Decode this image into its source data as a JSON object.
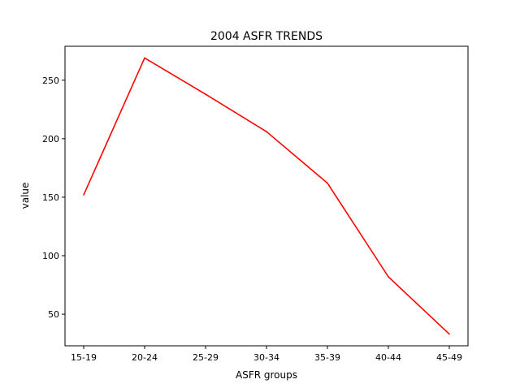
{
  "chart_data": {
    "type": "line",
    "title": "2004 ASFR TRENDS",
    "xlabel": "ASFR groups",
    "ylabel": "value",
    "categories": [
      "15-19",
      "20-24",
      "25-29",
      "30-34",
      "35-39",
      "40-44",
      "45-49"
    ],
    "series": [
      {
        "values": [
          152,
          269,
          238,
          206,
          162,
          82,
          33
        ]
      }
    ],
    "ylim": [
      23,
      279
    ],
    "yticks": [
      50,
      100,
      150,
      200,
      250
    ],
    "grid": false,
    "line_color": "#ff0000"
  }
}
